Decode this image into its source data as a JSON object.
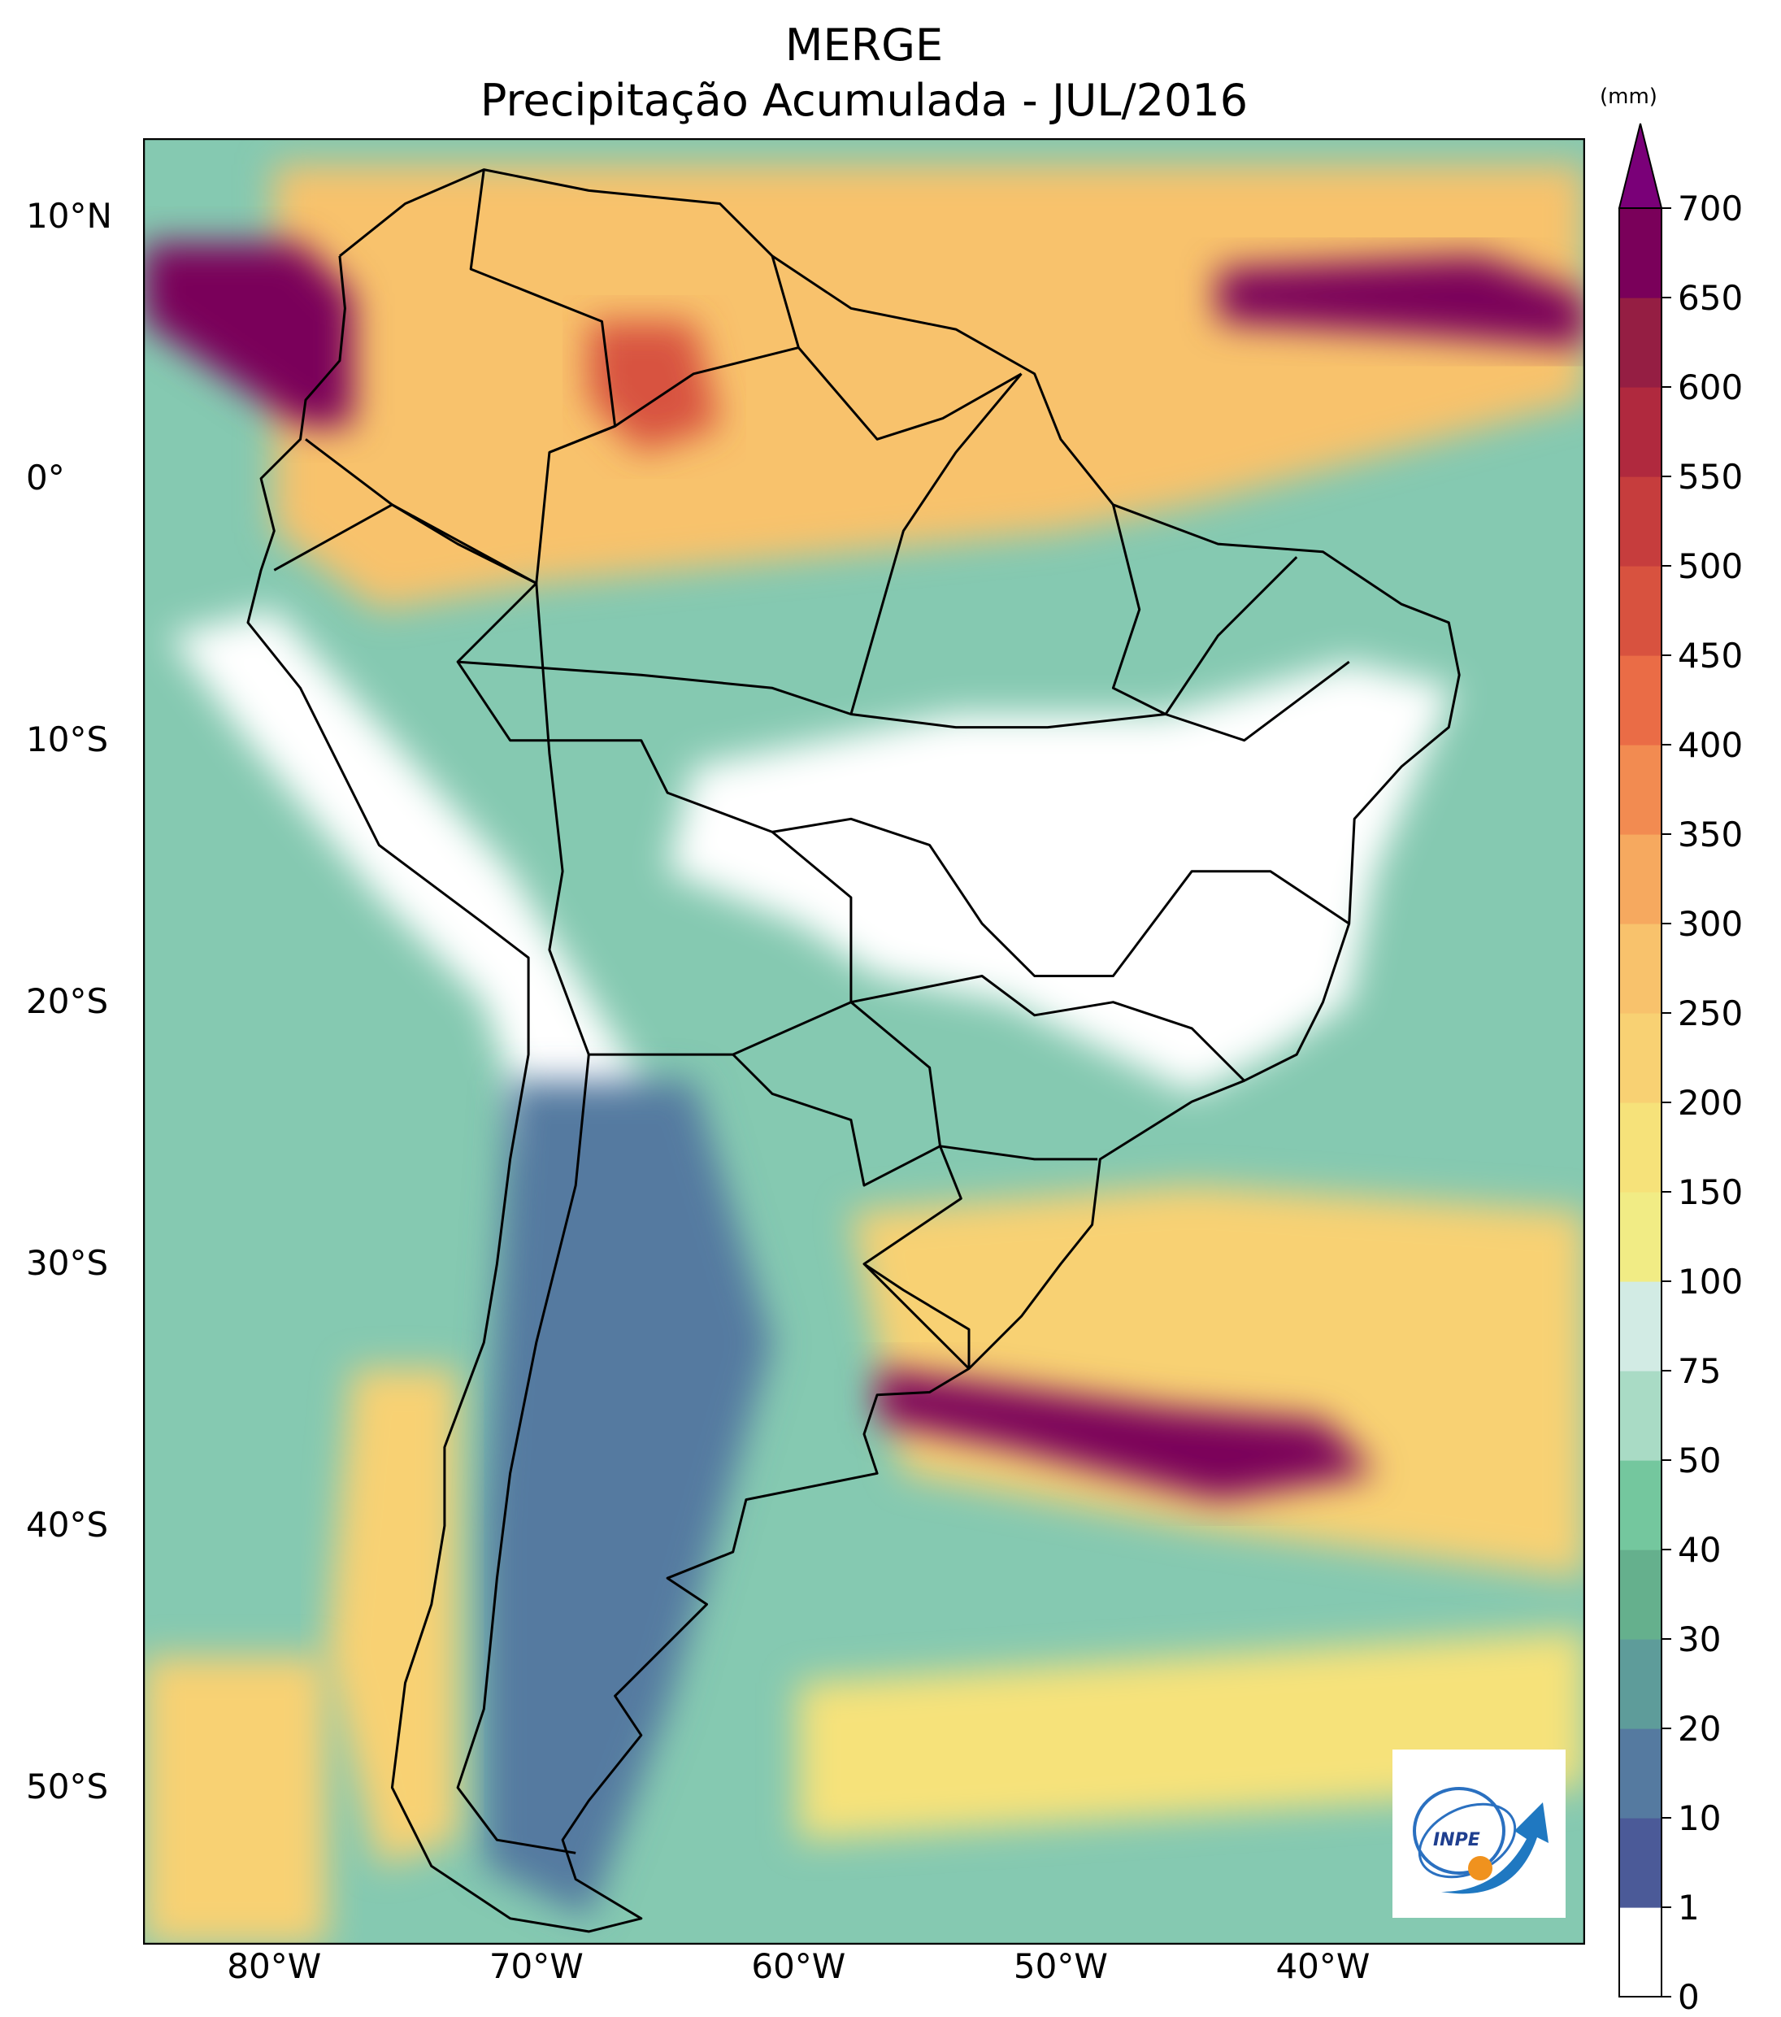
{
  "title": {
    "line1": "MERGE",
    "line2": "Precipitação Acumulada - JUL/2016"
  },
  "map": {
    "projection": "plate-carree",
    "lon_range": [
      -85,
      -30
    ],
    "lat_range": [
      -56,
      13
    ],
    "lat_ticks": [
      {
        "value": 10,
        "label": "10°N"
      },
      {
        "value": 0,
        "label": "0°"
      },
      {
        "value": -10,
        "label": "10°S"
      },
      {
        "value": -20,
        "label": "20°S"
      },
      {
        "value": -30,
        "label": "30°S"
      },
      {
        "value": -40,
        "label": "40°S"
      },
      {
        "value": -50,
        "label": "50°S"
      }
    ],
    "lon_ticks": [
      {
        "value": -80,
        "label": "80°W"
      },
      {
        "value": -70,
        "label": "70°W"
      },
      {
        "value": -60,
        "label": "60°W"
      },
      {
        "value": -50,
        "label": "50°W"
      },
      {
        "value": -40,
        "label": "40°W"
      }
    ],
    "regions": [
      {
        "name": "north-amazon-band",
        "bin": 250,
        "points": [
          [
            -80,
            12
          ],
          [
            -30,
            12
          ],
          [
            -30,
            3
          ],
          [
            -45,
            -1
          ],
          [
            -50,
            -2
          ],
          [
            -60,
            -3
          ],
          [
            -70,
            -4
          ],
          [
            -76,
            -5
          ],
          [
            -80,
            -2
          ]
        ]
      },
      {
        "name": "northwest-coast-maximum",
        "bin": 700,
        "points": [
          [
            -85,
            9
          ],
          [
            -79,
            9
          ],
          [
            -77,
            7
          ],
          [
            -77,
            2
          ],
          [
            -79,
            2
          ],
          [
            -85,
            6
          ]
        ]
      },
      {
        "name": "atlantic-itcz-maximum",
        "bin": 650,
        "points": [
          [
            -44,
            8
          ],
          [
            -34,
            8.5
          ],
          [
            -30,
            7
          ],
          [
            -30,
            5
          ],
          [
            -36,
            5.5
          ],
          [
            -44,
            6
          ]
        ]
      },
      {
        "name": "amazon-center-maximum",
        "bin": 450,
        "points": [
          [
            -68,
            6
          ],
          [
            -64,
            6
          ],
          [
            -63,
            2
          ],
          [
            -66,
            1
          ],
          [
            -68,
            3
          ]
        ]
      },
      {
        "name": "central-brazil-dry",
        "bin": 0,
        "points": [
          [
            -64,
            -11
          ],
          [
            -54,
            -9
          ],
          [
            -46,
            -9
          ],
          [
            -39,
            -7
          ],
          [
            -35,
            -8
          ],
          [
            -38,
            -15
          ],
          [
            -39,
            -20
          ],
          [
            -42,
            -22
          ],
          [
            -45,
            -23.5
          ],
          [
            -52,
            -20
          ],
          [
            -57,
            -19
          ],
          [
            -60,
            -17
          ],
          [
            -65,
            -15
          ]
        ]
      },
      {
        "name": "andes-dry",
        "bin": 0,
        "points": [
          [
            -84,
            -6
          ],
          [
            -81,
            -10
          ],
          [
            -76,
            -16
          ],
          [
            -72,
            -20
          ],
          [
            -70,
            -26
          ],
          [
            -67,
            -27
          ],
          [
            -66,
            -23
          ],
          [
            -71,
            -15
          ],
          [
            -80,
            -5
          ]
        ]
      },
      {
        "name": "patagonia-low",
        "bin": 10,
        "points": [
          [
            -71,
            -23
          ],
          [
            -64,
            -23
          ],
          [
            -61,
            -33
          ],
          [
            -63,
            -40
          ],
          [
            -65,
            -47
          ],
          [
            -68,
            -55
          ],
          [
            -72,
            -53
          ],
          [
            -72,
            -40
          ]
        ]
      },
      {
        "name": "south-atlantic-band",
        "bin": 200,
        "points": [
          [
            -58,
            -28
          ],
          [
            -45,
            -27
          ],
          [
            -30,
            -28
          ],
          [
            -30,
            -42
          ],
          [
            -45,
            -40
          ],
          [
            -56,
            -38
          ]
        ]
      },
      {
        "name": "south-atlantic-maximum",
        "bin": 650,
        "points": [
          [
            -57,
            -34
          ],
          [
            -46,
            -35.5
          ],
          [
            -40,
            -36
          ],
          [
            -38,
            -38
          ],
          [
            -44,
            -39
          ],
          [
            -52,
            -37
          ],
          [
            -57,
            -36
          ]
        ]
      },
      {
        "name": "chile-coast-band",
        "bin": 200,
        "points": [
          [
            -77,
            -34
          ],
          [
            -73,
            -34
          ],
          [
            -73,
            -52
          ],
          [
            -76,
            -53
          ],
          [
            -78,
            -45
          ]
        ]
      },
      {
        "name": "southern-ocean-band",
        "bin": 150,
        "points": [
          [
            -60,
            -46
          ],
          [
            -30,
            -44
          ],
          [
            -30,
            -50
          ],
          [
            -60,
            -52
          ]
        ]
      },
      {
        "name": "far-south-pacific",
        "bin": 200,
        "points": [
          [
            -85,
            -45
          ],
          [
            -78,
            -45
          ],
          [
            -78,
            -56
          ],
          [
            -85,
            -56
          ]
        ]
      }
    ],
    "borders": [
      {
        "name": "south-america-coastline",
        "points": [
          [
            -77.5,
            8.5
          ],
          [
            -75,
            10.5
          ],
          [
            -72,
            11.8
          ],
          [
            -68,
            11
          ],
          [
            -63,
            10.5
          ],
          [
            -61,
            8.5
          ],
          [
            -58,
            6.5
          ],
          [
            -54,
            5.7
          ],
          [
            -51,
            4
          ],
          [
            -50,
            1.5
          ],
          [
            -48,
            -1
          ],
          [
            -44,
            -2.5
          ],
          [
            -40,
            -2.8
          ],
          [
            -37,
            -4.8
          ],
          [
            -35.2,
            -5.5
          ],
          [
            -34.8,
            -7.5
          ],
          [
            -35.2,
            -9.5
          ],
          [
            -37,
            -11
          ],
          [
            -38.8,
            -13
          ],
          [
            -39,
            -17
          ],
          [
            -40,
            -20
          ],
          [
            -41,
            -22
          ],
          [
            -43,
            -23
          ],
          [
            -45,
            -23.8
          ],
          [
            -48.5,
            -26
          ],
          [
            -48.8,
            -28.5
          ],
          [
            -50,
            -30
          ],
          [
            -51.5,
            -32
          ],
          [
            -53.5,
            -34
          ],
          [
            -55,
            -34.9
          ],
          [
            -57,
            -35
          ],
          [
            -57.5,
            -36.5
          ],
          [
            -57,
            -38
          ],
          [
            -62,
            -39
          ],
          [
            -62.5,
            -41
          ],
          [
            -65,
            -42
          ],
          [
            -63.5,
            -43
          ],
          [
            -65.5,
            -45
          ],
          [
            -67,
            -46.5
          ],
          [
            -66,
            -48
          ],
          [
            -68,
            -50.5
          ],
          [
            -69,
            -52
          ],
          [
            -68.5,
            -53.5
          ],
          [
            -66,
            -55
          ],
          [
            -68,
            -55.5
          ],
          [
            -71,
            -55
          ],
          [
            -74,
            -53
          ],
          [
            -75.5,
            -50
          ],
          [
            -75,
            -46
          ],
          [
            -74,
            -43
          ],
          [
            -73.5,
            -40
          ],
          [
            -73.5,
            -37
          ],
          [
            -72,
            -33
          ],
          [
            -71.5,
            -30
          ],
          [
            -71,
            -26
          ],
          [
            -70.3,
            -22
          ],
          [
            -70.3,
            -18.3
          ],
          [
            -72,
            -17
          ],
          [
            -76,
            -14
          ],
          [
            -77,
            -12
          ],
          [
            -79,
            -8
          ],
          [
            -81,
            -5.5
          ],
          [
            -80.5,
            -3.5
          ],
          [
            -80,
            -2
          ],
          [
            -80.5,
            0
          ],
          [
            -79,
            1.5
          ],
          [
            -78.8,
            3
          ],
          [
            -77.5,
            4.5
          ],
          [
            -77.3,
            6.5
          ],
          [
            -77.5,
            8.5
          ]
        ]
      },
      {
        "name": "brazil-west-border",
        "points": [
          [
            -60,
            5
          ],
          [
            -64,
            4
          ],
          [
            -67,
            2
          ],
          [
            -69.5,
            1
          ],
          [
            -70,
            -4
          ],
          [
            -73,
            -7
          ],
          [
            -71,
            -10
          ],
          [
            -66,
            -10
          ],
          [
            -65,
            -12
          ],
          [
            -61,
            -13.5
          ],
          [
            -58,
            -16
          ],
          [
            -58,
            -20
          ],
          [
            -55,
            -22.5
          ],
          [
            -54.6,
            -25.5
          ],
          [
            -53.8,
            -27.5
          ],
          [
            -57.5,
            -30
          ],
          [
            -53.5,
            -34
          ]
        ]
      },
      {
        "name": "andes-borders",
        "points": [
          [
            -80,
            -3.5
          ],
          [
            -75.5,
            -1
          ],
          [
            -70,
            -4
          ],
          [
            -69.5,
            -10.5
          ],
          [
            -69,
            -15
          ],
          [
            -69.5,
            -18
          ],
          [
            -68,
            -22
          ],
          [
            -66.8,
            -22
          ],
          [
            -62.5,
            -22
          ],
          [
            -58,
            -20
          ]
        ]
      },
      {
        "name": "chile-argentina-border",
        "points": [
          [
            -68,
            -22
          ],
          [
            -68.5,
            -27
          ],
          [
            -70,
            -33
          ],
          [
            -71,
            -38
          ],
          [
            -71.5,
            -42
          ],
          [
            -72,
            -47
          ],
          [
            -73,
            -50
          ],
          [
            -71.5,
            -52
          ],
          [
            -68.5,
            -52.5
          ]
        ]
      },
      {
        "name": "paraguay-border",
        "points": [
          [
            -62.5,
            -22
          ],
          [
            -61,
            -23.5
          ],
          [
            -58,
            -24.5
          ],
          [
            -57.5,
            -27
          ],
          [
            -54.6,
            -25.5
          ]
        ]
      },
      {
        "name": "colombia-venezuela-border",
        "points": [
          [
            -72,
            11.8
          ],
          [
            -72.5,
            8
          ],
          [
            -70,
            7
          ],
          [
            -67.5,
            6
          ],
          [
            -67,
            2
          ],
          [
            -69.5,
            1
          ]
        ]
      },
      {
        "name": "colombia-ecuador-peru-border",
        "points": [
          [
            -78.8,
            1.5
          ],
          [
            -75.5,
            -1
          ],
          [
            -73,
            -2.5
          ],
          [
            -70,
            -4
          ]
        ]
      },
      {
        "name": "guianas-borders",
        "points": [
          [
            -61,
            8.5
          ],
          [
            -60,
            5
          ],
          [
            -57,
            1.5
          ],
          [
            -54.5,
            2.3
          ],
          [
            -51.5,
            4
          ]
        ]
      },
      {
        "name": "uruguay-border",
        "points": [
          [
            -57.5,
            -30
          ],
          [
            -56,
            -31
          ],
          [
            -53.5,
            -32.5
          ],
          [
            -53.5,
            -34
          ]
        ]
      },
      {
        "name": "brazil-states-north",
        "points": [
          [
            -58,
            -9
          ],
          [
            -54,
            -9.5
          ],
          [
            -50.5,
            -9.5
          ],
          [
            -46,
            -9
          ],
          [
            -43,
            -10
          ],
          [
            -39,
            -7
          ]
        ]
      },
      {
        "name": "brazil-states-central",
        "points": [
          [
            -61,
            -13.5
          ],
          [
            -58,
            -13
          ],
          [
            -55,
            -14
          ],
          [
            -53,
            -17
          ],
          [
            -51,
            -19
          ],
          [
            -48,
            -19
          ],
          [
            -45,
            -15
          ],
          [
            -42,
            -15
          ],
          [
            -39,
            -17
          ]
        ]
      },
      {
        "name": "brazil-states-south",
        "points": [
          [
            -58,
            -20
          ],
          [
            -53,
            -19
          ],
          [
            -51,
            -20.5
          ],
          [
            -48,
            -20
          ],
          [
            -45,
            -21
          ],
          [
            -43,
            -23
          ]
        ]
      },
      {
        "name": "brazil-states-far-south",
        "points": [
          [
            -54.6,
            -25.5
          ],
          [
            -51,
            -26
          ],
          [
            -48.6,
            -26
          ]
        ]
      },
      {
        "name": "brazil-states-amazon",
        "points": [
          [
            -73,
            -7
          ],
          [
            -66,
            -7.5
          ],
          [
            -61,
            -8
          ],
          [
            -58,
            -9
          ],
          [
            -56,
            -2
          ],
          [
            -54,
            1
          ],
          [
            -51.5,
            4
          ]
        ]
      },
      {
        "name": "brazil-states-northeast",
        "points": [
          [
            -48,
            -1
          ],
          [
            -47,
            -5
          ],
          [
            -48,
            -8
          ],
          [
            -46,
            -9
          ],
          [
            -44,
            -6
          ],
          [
            -41,
            -3
          ]
        ]
      }
    ]
  },
  "colorbar": {
    "unit": "(mm)",
    "bounds": [
      0,
      1,
      10,
      20,
      30,
      40,
      50,
      75,
      100,
      150,
      200,
      250,
      300,
      350,
      400,
      450,
      500,
      550,
      600,
      650,
      700
    ],
    "labels": [
      "0",
      "1",
      "10",
      "20",
      "30",
      "40",
      "50",
      "75",
      "100",
      "150",
      "200",
      "250",
      "300",
      "350",
      "400",
      "450",
      "500",
      "550",
      "600",
      "650",
      "700"
    ],
    "colors": [
      "#ffffff",
      "#4b5a98",
      "#557aa0",
      "#5e9c9a",
      "#65b08d",
      "#74c79e",
      "#a9dbc5",
      "#d2ebe4",
      "#f1ec85",
      "#f6e27a",
      "#f8d173",
      "#f8c26c",
      "#f6a95f",
      "#f28b51",
      "#ea6c46",
      "#d8523f",
      "#c63d3d",
      "#b0293e",
      "#951e43",
      "#7a005a"
    ],
    "extend_color": "#7a0078"
  },
  "logo": {
    "text": "INPE"
  }
}
